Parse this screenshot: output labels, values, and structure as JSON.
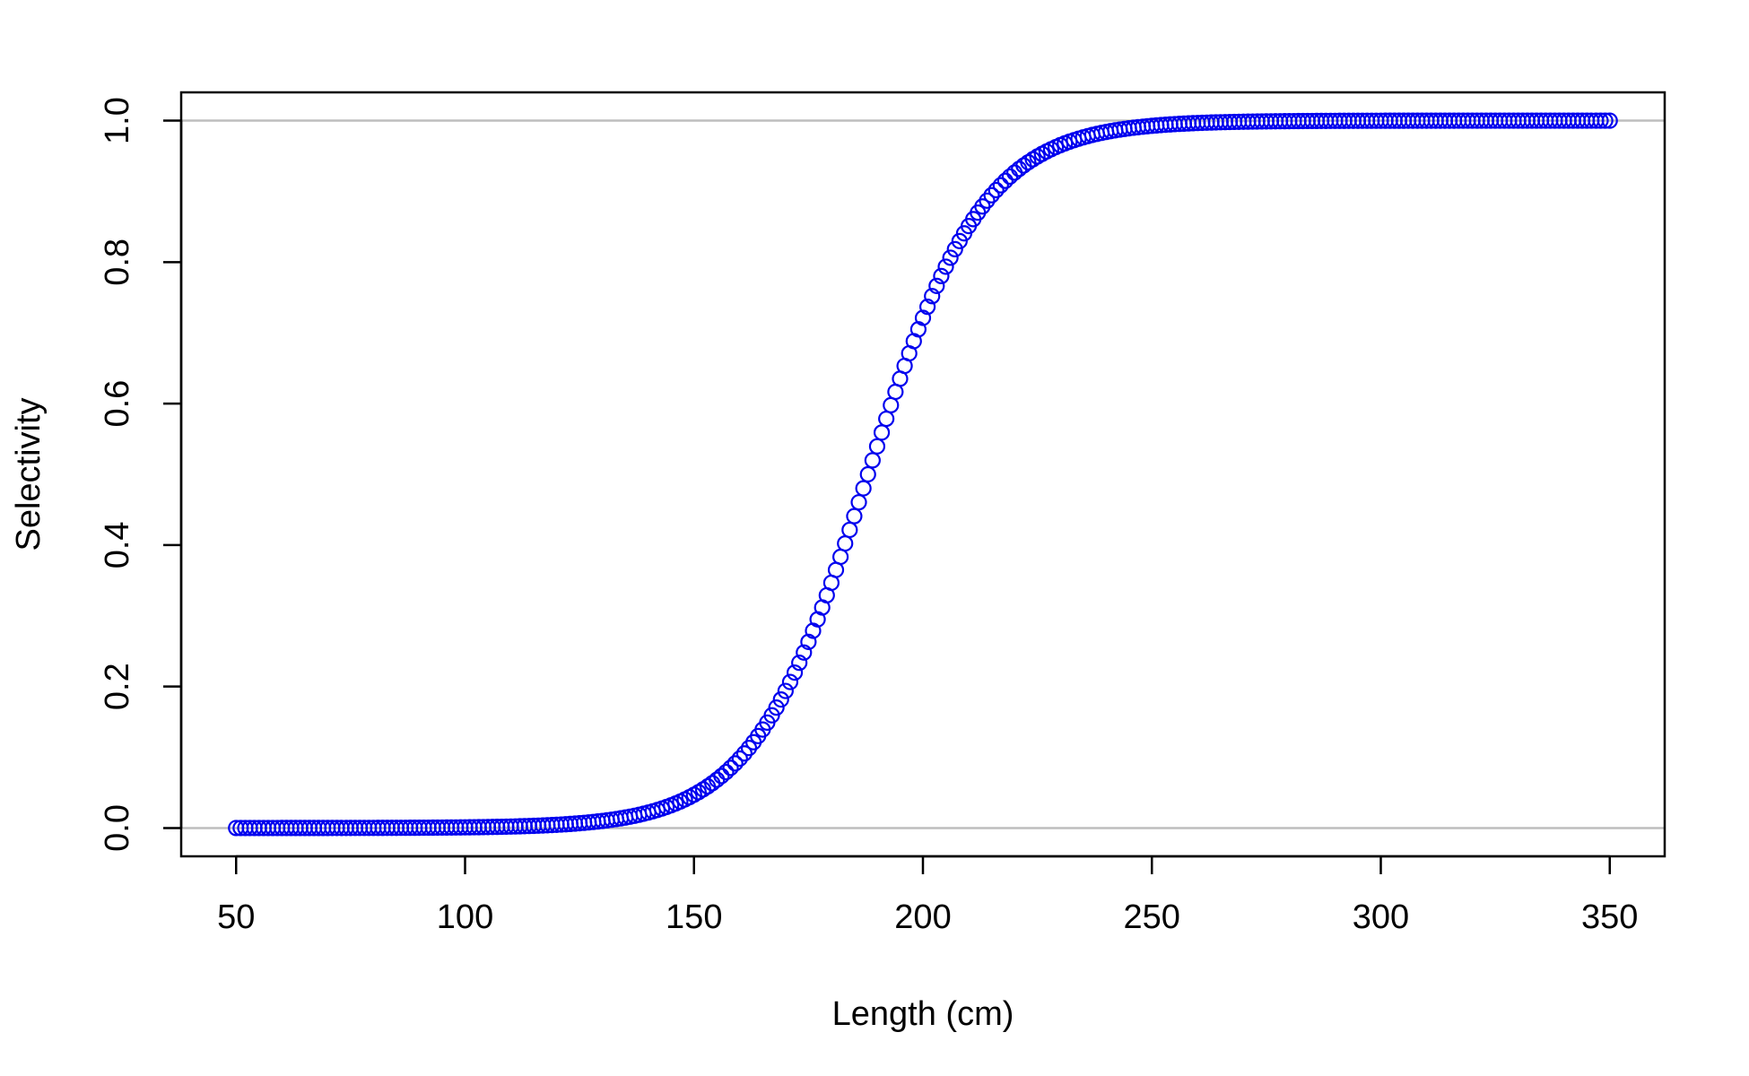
{
  "chart_data": {
    "type": "scatter",
    "title": "",
    "xlabel": "Length (cm)",
    "ylabel": "Selectivity",
    "xlim": [
      38,
      362
    ],
    "ylim": [
      -0.04,
      1.04
    ],
    "x_ticks": [
      50,
      100,
      150,
      200,
      250,
      300,
      350
    ],
    "x_tick_labels": [
      "50",
      "100",
      "150",
      "200",
      "250",
      "300",
      "350"
    ],
    "y_ticks": [
      0.0,
      0.2,
      0.4,
      0.6,
      0.8,
      1.0
    ],
    "y_tick_labels": [
      "0.0",
      "0.2",
      "0.4",
      "0.6",
      "0.8",
      "1.0"
    ],
    "reference_lines": [
      0.0,
      1.0
    ],
    "reference_line_color": "#bebebe",
    "point_color": "#0000ee",
    "marker": "open-circle",
    "grid": false,
    "series": [
      {
        "x_start": 50,
        "x_end": 350,
        "x_step": 1,
        "model": "logistic",
        "l50": 188,
        "slope": 0.0792
      }
    ]
  }
}
